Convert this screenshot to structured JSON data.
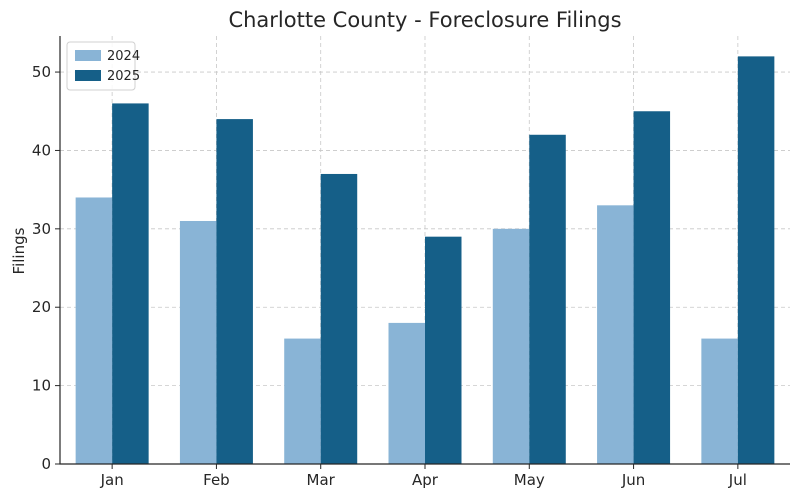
{
  "chart_data": {
    "type": "bar",
    "title": "Charlotte County - Foreclosure Filings",
    "xlabel": "",
    "ylabel": "Filings",
    "categories": [
      "Jan",
      "Feb",
      "Mar",
      "Apr",
      "May",
      "Jun",
      "Jul"
    ],
    "series": [
      {
        "name": "2024",
        "values": [
          34,
          31,
          16,
          18,
          30,
          33,
          16
        ],
        "color": "#89b4d6"
      },
      {
        "name": "2025",
        "values": [
          46,
          44,
          37,
          29,
          42,
          45,
          52
        ],
        "color": "#155f88"
      }
    ],
    "ylim": [
      0,
      54.6
    ],
    "yticks": [
      0,
      10,
      20,
      30,
      40,
      50
    ],
    "grid": true,
    "legend_position": "top-left"
  }
}
